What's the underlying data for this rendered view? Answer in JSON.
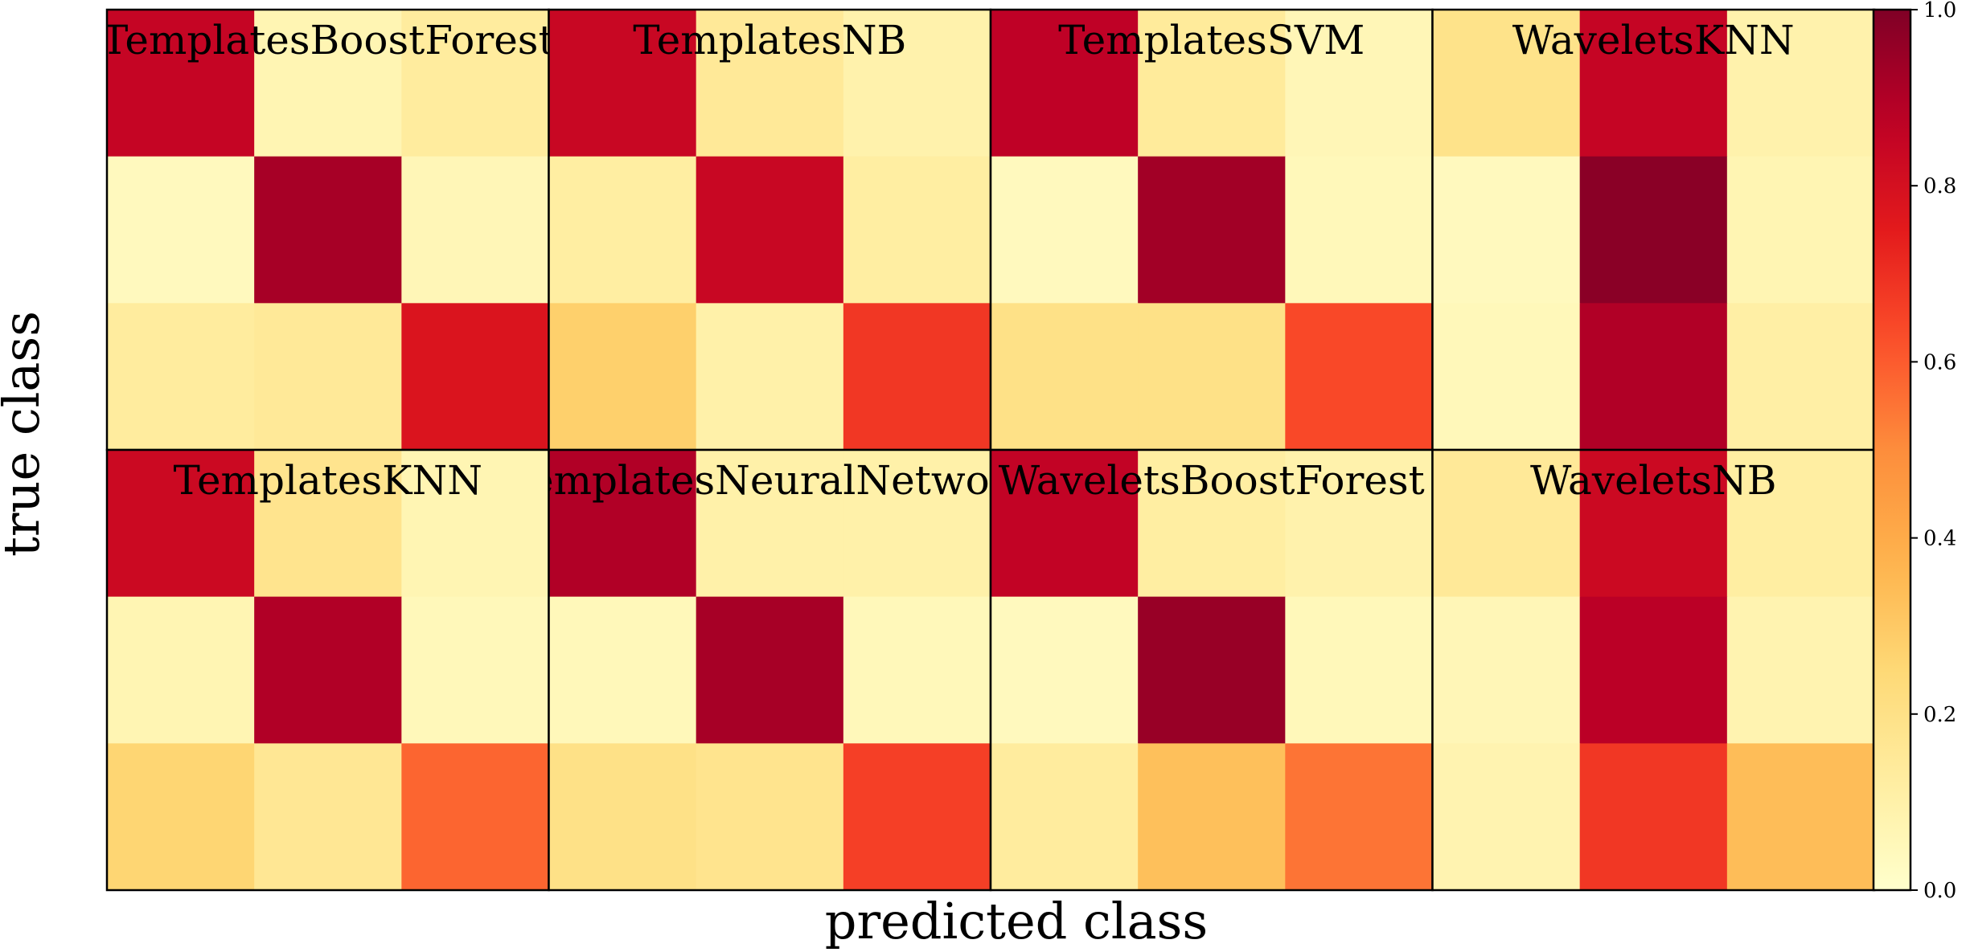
{
  "chart_data": {
    "type": "heatmap",
    "xlabel": "predicted class",
    "ylabel": "true class",
    "colormap": "YlOrRd",
    "colorbar": {
      "range": [
        0.0,
        1.0
      ],
      "ticks": [
        0.0,
        0.2,
        0.4,
        0.6,
        0.8,
        1.0
      ],
      "tick_labels": [
        "0.0",
        "0.2",
        "0.4",
        "0.6",
        "0.8",
        "1.0"
      ]
    },
    "grid_layout": {
      "rows": 2,
      "cols": 4
    },
    "panels": [
      {
        "title": "TemplatesBoostForest",
        "matrix": [
          [
            0.85,
            0.07,
            0.13
          ],
          [
            0.04,
            0.92,
            0.06
          ],
          [
            0.13,
            0.15,
            0.78
          ]
        ]
      },
      {
        "title": "TemplatesNB",
        "matrix": [
          [
            0.84,
            0.15,
            0.09
          ],
          [
            0.12,
            0.84,
            0.12
          ],
          [
            0.28,
            0.1,
            0.68
          ]
        ]
      },
      {
        "title": "TemplatesSVM",
        "matrix": [
          [
            0.87,
            0.14,
            0.06
          ],
          [
            0.04,
            0.93,
            0.05
          ],
          [
            0.2,
            0.2,
            0.64
          ]
        ]
      },
      {
        "title": "WaveletsKNN",
        "matrix": [
          [
            0.19,
            0.85,
            0.09
          ],
          [
            0.04,
            0.98,
            0.07
          ],
          [
            0.05,
            0.9,
            0.11
          ]
        ]
      },
      {
        "title": "TemplatesKNN",
        "matrix": [
          [
            0.83,
            0.18,
            0.07
          ],
          [
            0.07,
            0.9,
            0.05
          ],
          [
            0.26,
            0.16,
            0.58
          ]
        ]
      },
      {
        "title": "TemplatesNeuralNetwork",
        "matrix": [
          [
            0.9,
            0.1,
            0.1
          ],
          [
            0.05,
            0.92,
            0.05
          ],
          [
            0.2,
            0.18,
            0.66
          ]
        ]
      },
      {
        "title": "WaveletsBoostForest",
        "matrix": [
          [
            0.86,
            0.12,
            0.09
          ],
          [
            0.04,
            0.95,
            0.05
          ],
          [
            0.13,
            0.33,
            0.55
          ]
        ]
      },
      {
        "title": "WaveletsNB",
        "matrix": [
          [
            0.15,
            0.83,
            0.12
          ],
          [
            0.06,
            0.88,
            0.08
          ],
          [
            0.08,
            0.68,
            0.34
          ]
        ]
      }
    ]
  }
}
